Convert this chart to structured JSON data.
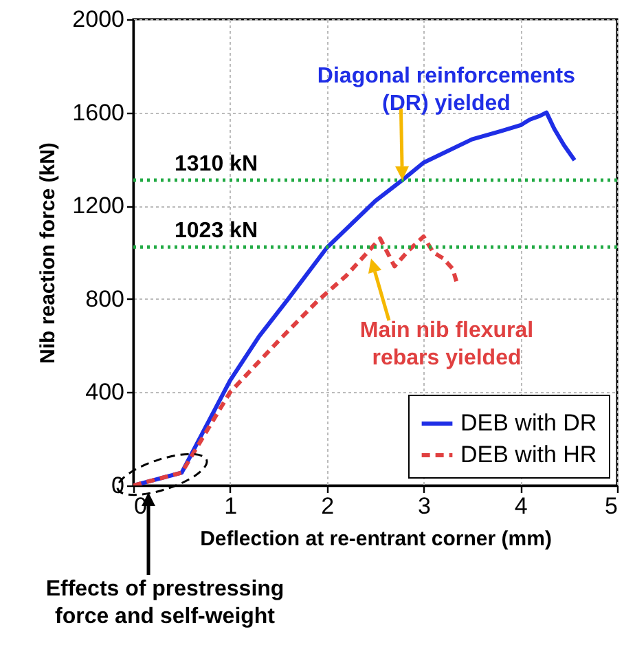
{
  "chart_data": {
    "type": "line",
    "xlabel": "Deflection at re-entrant corner (mm)",
    "ylabel": "Nib reaction force (kN)",
    "xlim": [
      0,
      5
    ],
    "xticks": [
      0,
      1,
      2,
      3,
      4,
      5
    ],
    "ylim": [
      0,
      2000
    ],
    "yticks": [
      0,
      400,
      800,
      1200,
      1600,
      2000
    ],
    "grid": true,
    "legend": "bottom right",
    "marker": "none",
    "series": [
      {
        "name": "DEB with DR",
        "color": "#1f2ee6",
        "line_style": "solid",
        "x": [
          0,
          0.5,
          1,
          1.3,
          1.6,
          2,
          2.5,
          2.78,
          3,
          3.5,
          3.8,
          4,
          4.1,
          4.2,
          4.27,
          4.35,
          4.45,
          4.56
        ],
        "values": [
          0,
          55,
          450,
          640,
          800,
          1020,
          1220,
          1310,
          1385,
          1485,
          1520,
          1545,
          1570,
          1585,
          1600,
          1530,
          1460,
          1395
        ]
      },
      {
        "name": "DEB with HR",
        "color": "#e04040",
        "line_style": "dashed",
        "x": [
          0,
          0.5,
          1,
          1.5,
          1.9,
          2.2,
          2.42,
          2.55,
          2.7,
          2.85,
          3,
          3.1,
          3.2,
          3.3,
          3.35
        ],
        "values": [
          0,
          55,
          400,
          620,
          790,
          900,
          1000,
          1060,
          940,
          1010,
          1068,
          1000,
          975,
          930,
          860
        ]
      }
    ],
    "ref_lines": [
      {
        "axis": "y",
        "value": 1310,
        "label": "1310 kN",
        "color": "#22aa44",
        "line_style": "dotted"
      },
      {
        "axis": "y",
        "value": 1023,
        "label": "1023 kN",
        "color": "#22aa44",
        "line_style": "dotted"
      }
    ],
    "annotations": [
      {
        "text": "Diagonal reinforcements\n(DR) yielded",
        "x": 2.78,
        "y": 1310
      },
      "Main nib flexural\nrebars yielded",
      "Effects of prestressing\nforce and self-weight"
    ]
  }
}
